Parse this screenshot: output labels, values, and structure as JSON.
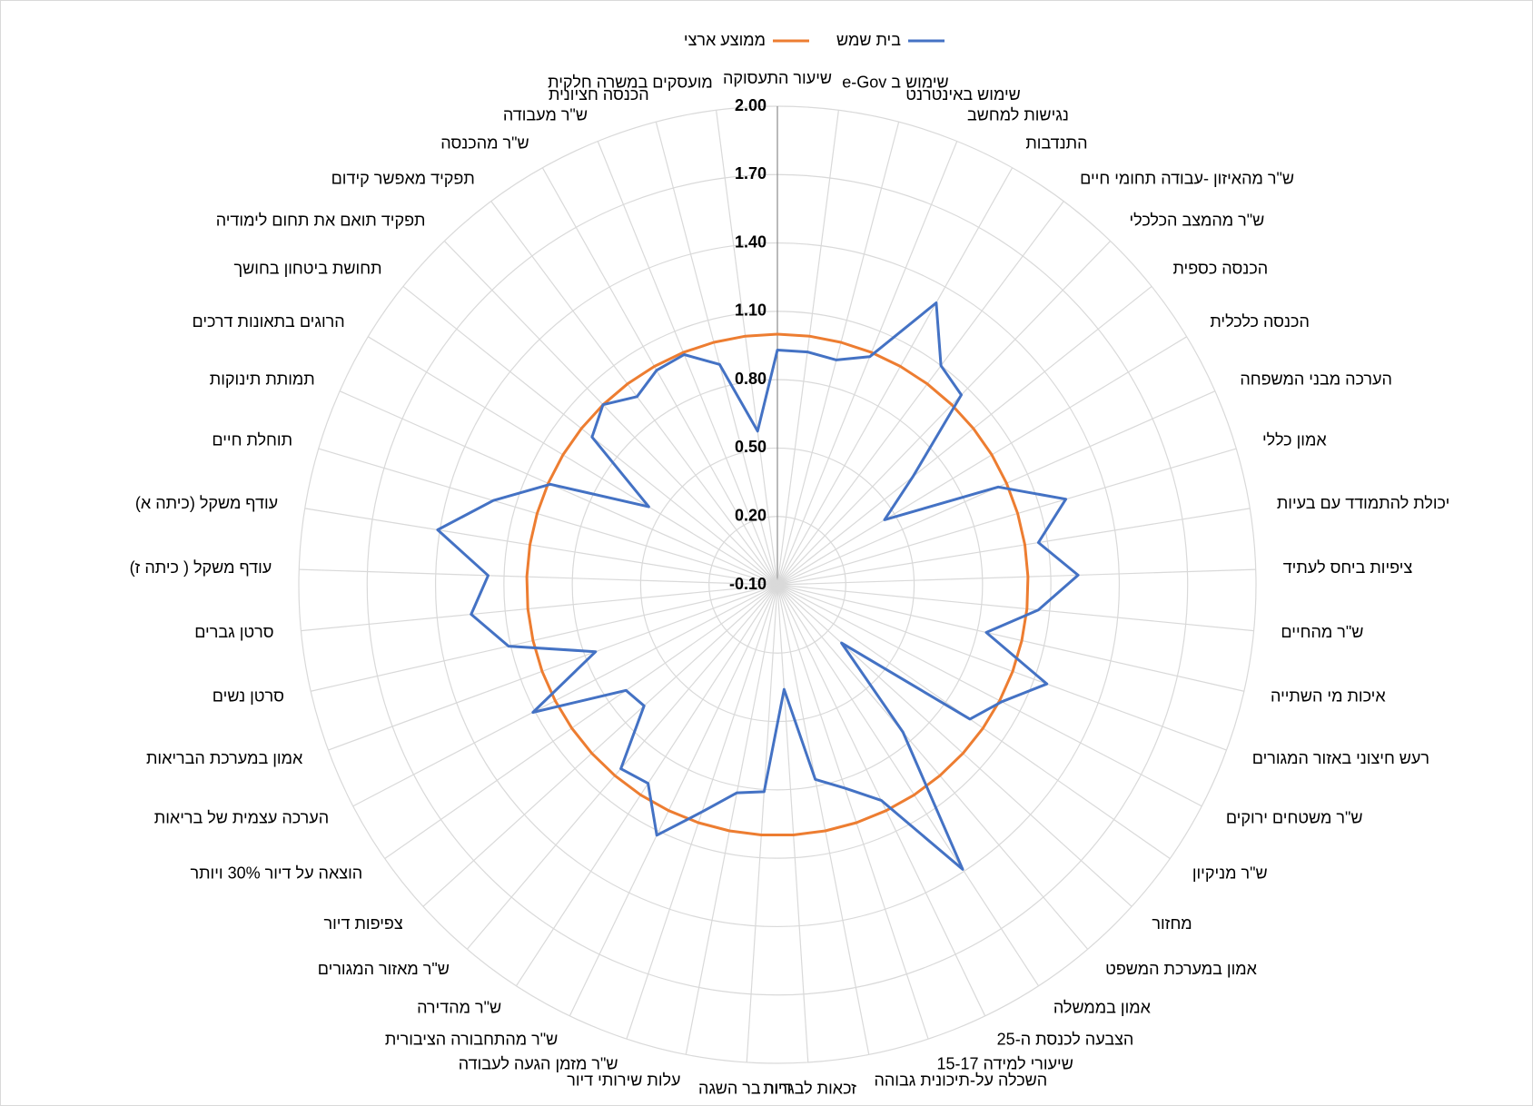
{
  "chart_data": {
    "type": "radar",
    "categories": [
      "שיעור התעסוקה",
      "שימוש ב e-Gov",
      "שימוש באינטרנט",
      "נגישות למחשב",
      "התנדבות",
      "ש\"ר מהאיזון -עבודה תחומי חיים",
      "ש\"ר מהמצב הכלכלי",
      "הכנסה כספית",
      "הכנסה כלכלית",
      "הערכה מבני המשפחה",
      "אמון כללי",
      "יכולת להתמודד עם בעיות",
      "ציפיות ביחס לעתיד",
      "ש\"ר מהחיים",
      "איכות מי השתייה",
      "רעש חיצוני באזור המגורים",
      "ש\"ר משטחים ירוקים",
      "ש\"ר מניקיון",
      "מחזור",
      "אמון במערכת המשפט",
      "אמון בממשלה",
      "הצבעה לכנסת ה-25",
      "שיעורי למידה 15-17",
      "השכלה על-תיכונית גבוהה",
      "זכאות לבגרות",
      "דיור בר השגה",
      "עלות שירותי דיור",
      "ש\"ר מזמן הגעה לעבודה",
      "ש\"ר מהתחבורה הציבורית",
      "ש\"ר מהדירה",
      "ש\"ר מאזור המגורים",
      "צפיפות דיור",
      "הוצאה על דיור 30% ויותר",
      "הערכה עצמית של בריאות",
      "אמון במערכת הבריאות",
      "סרטן נשים",
      "סרטן גברים",
      "עודף משקל ( כיתה ז)",
      "עודף משקל (כיתה א)",
      "תוחלת חיים",
      "תמותת תינוקות",
      "הרוגים בתאונות דרכים",
      "תחושת ביטחון בחושך",
      "תפקיד תואם את תחום לימודיה",
      "תפקיד מאפשר קידום",
      "ש\"ר מהכנסה",
      "ש\"ר מעבודה",
      "הכנסה חציונית",
      "מועסקים במשרה חלקית"
    ],
    "series": [
      {
        "name": "בית שמש",
        "color": "#4472c4",
        "values": [
          0.93,
          0.93,
          0.92,
          0.98,
          1.32,
          1.1,
          1.06,
          0.66,
          0.45,
          0.96,
          1.22,
          1.06,
          1.22,
          1.05,
          0.84,
          1.16,
          1.01,
          0.93,
          0.28,
          0.75,
          1.39,
          0.95,
          0.84,
          0.77,
          0.36,
          0.81,
          0.83,
          0.95,
          1.12,
          0.94,
          0.96,
          0.69,
          0.71,
          1.11,
          0.75,
          1.11,
          1.25,
          1.17,
          1.41,
          1.2,
          0.99,
          0.56,
          0.94,
          1.0,
          0.93,
          0.98,
          0.99,
          0.9,
          0.58
        ]
      },
      {
        "name": "ממוצע ארצי",
        "color": "#ed7d31",
        "values": [
          1,
          1,
          1,
          1,
          1,
          1,
          1,
          1,
          1,
          1,
          1,
          1,
          1,
          1,
          1,
          1,
          1,
          1,
          1,
          1,
          1,
          1,
          1,
          1,
          1,
          1,
          1,
          1,
          1,
          1,
          1,
          1,
          1,
          1,
          1,
          1,
          1,
          1,
          1,
          1,
          1,
          1,
          1,
          1,
          1,
          1,
          1,
          1,
          1
        ]
      }
    ],
    "ylim": [
      -0.1,
      2.0
    ],
    "yticks": [
      {
        "value": -0.1,
        "label": "-0.10"
      },
      {
        "value": 0.2,
        "label": "0.20"
      },
      {
        "value": 0.5,
        "label": "0.50"
      },
      {
        "value": 0.8,
        "label": "0.80"
      },
      {
        "value": 1.1,
        "label": "1.10"
      },
      {
        "value": 1.4,
        "label": "1.40"
      },
      {
        "value": 1.7,
        "label": "1.70"
      },
      {
        "value": 2.0,
        "label": "2.00"
      }
    ],
    "grid": true,
    "legend": "top"
  }
}
